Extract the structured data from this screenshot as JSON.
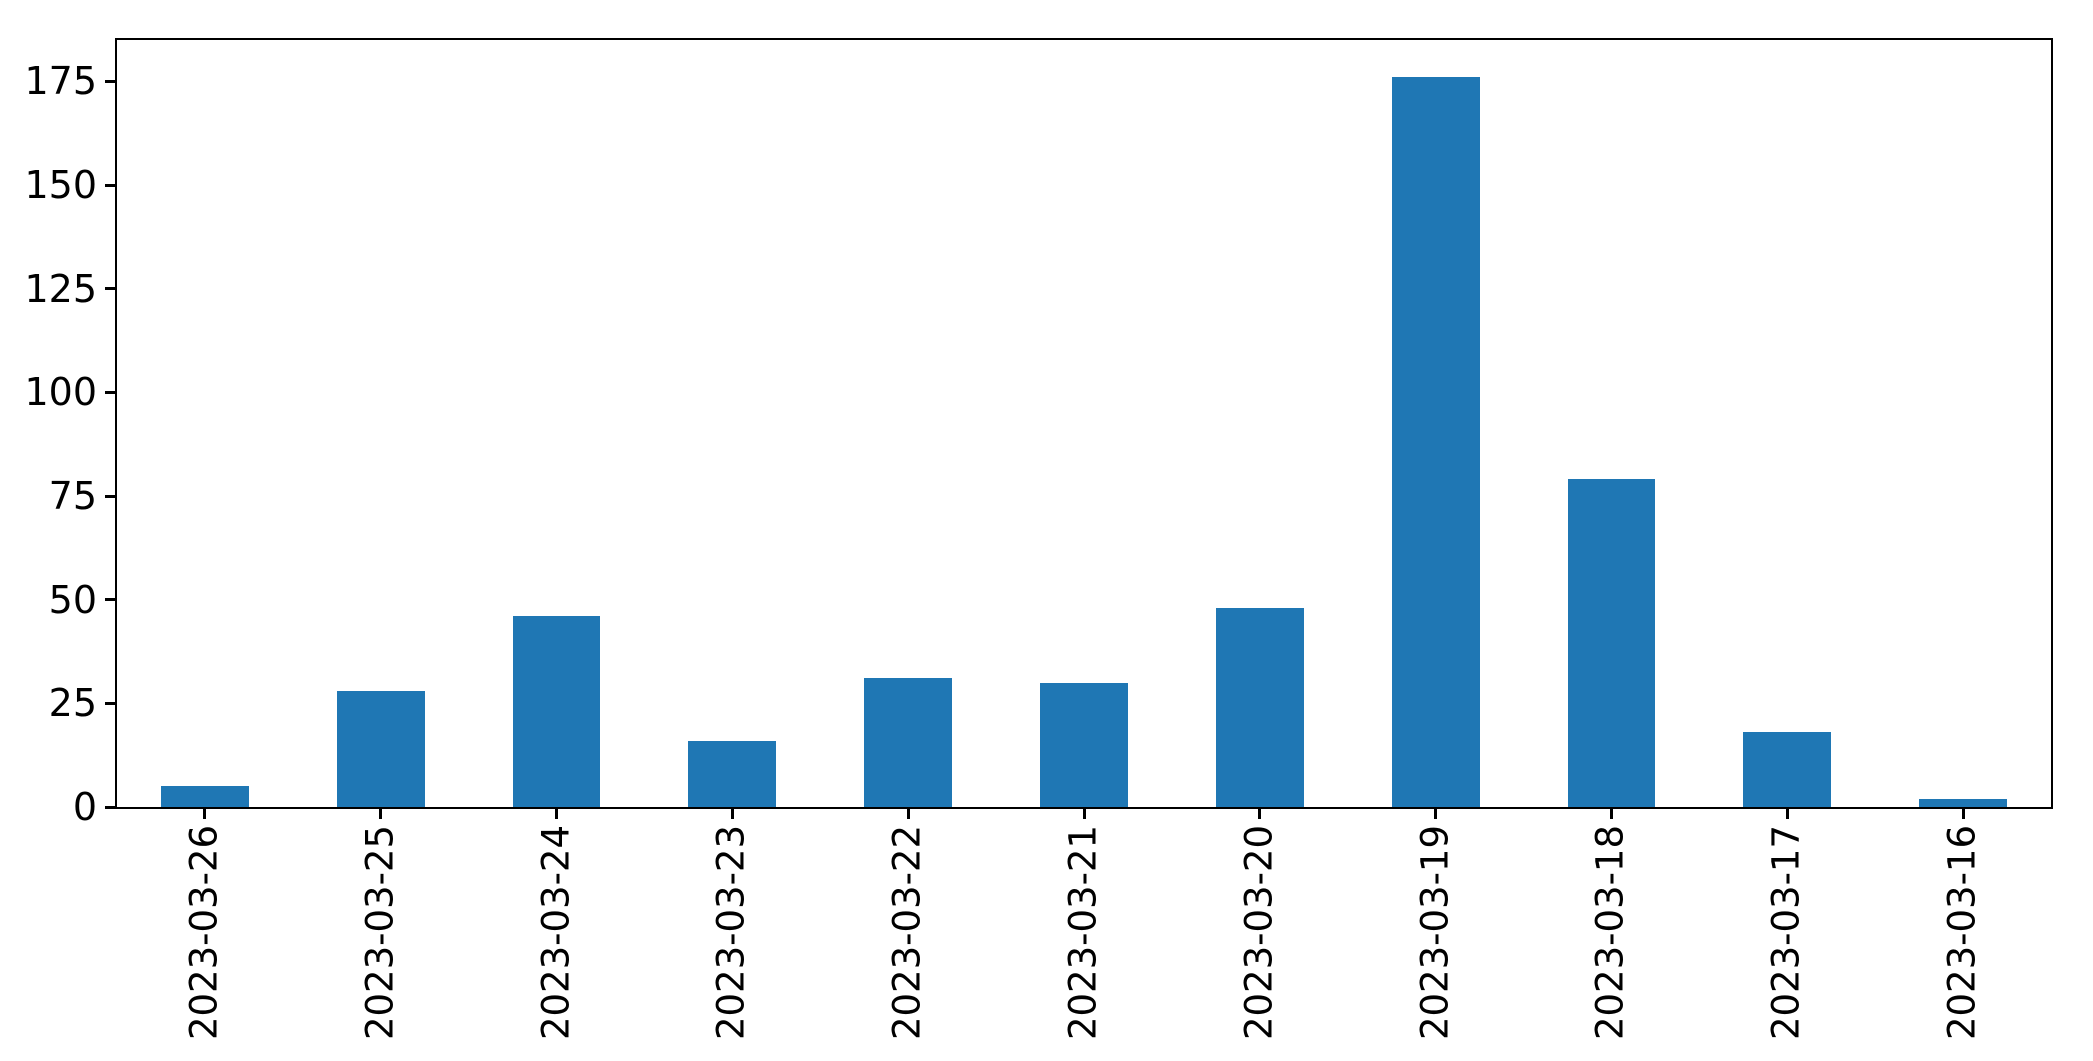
{
  "chart_data": {
    "type": "bar",
    "title": "",
    "xlabel": "",
    "ylabel": "",
    "categories": [
      "2023-03-26",
      "2023-03-25",
      "2023-03-24",
      "2023-03-23",
      "2023-03-22",
      "2023-03-21",
      "2023-03-20",
      "2023-03-19",
      "2023-03-18",
      "2023-03-17",
      "2023-03-16"
    ],
    "values": [
      5,
      28,
      46,
      16,
      31,
      30,
      48,
      176,
      79,
      18,
      2
    ],
    "yticks": [
      0,
      25,
      50,
      75,
      100,
      125,
      150,
      175
    ],
    "ylim": [
      0,
      185
    ],
    "bar_color": "#1f77b4",
    "bar_width_fraction": 0.5,
    "x_tick_rotation": 90,
    "grid": false,
    "legend": null,
    "axis_color": "#000000",
    "tick_label_color": "#000000"
  }
}
